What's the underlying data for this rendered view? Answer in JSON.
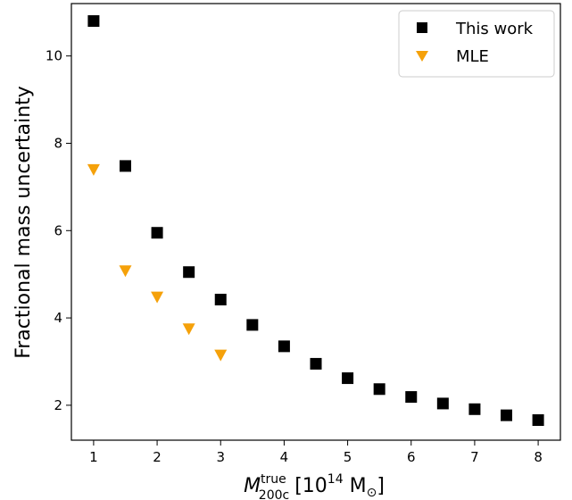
{
  "chart_data": {
    "type": "scatter",
    "xlabel": {
      "main": "M",
      "superscript": "true",
      "subscript": "200c",
      "unit_prefix": "[10",
      "unit_exponent": "14",
      "unit_suffix": " M",
      "unit_sub": "⊙",
      "unit_close": "]"
    },
    "ylabel": "Fractional mass uncertainty",
    "xlim": [
      0.65,
      8.35
    ],
    "ylim": [
      1.2,
      11.2
    ],
    "xticks": [
      1,
      2,
      3,
      4,
      5,
      6,
      7,
      8
    ],
    "yticks": [
      2,
      4,
      6,
      8,
      10
    ],
    "grid": false,
    "legend_position": "top-right",
    "series": [
      {
        "name": "This work",
        "marker": "square",
        "color": "#000000",
        "x": [
          1,
          1.5,
          2,
          2.5,
          3,
          3.5,
          4,
          4.5,
          5,
          5.5,
          6,
          6.5,
          7,
          7.5,
          8
        ],
        "y": [
          10.8,
          7.48,
          5.95,
          5.05,
          4.42,
          3.84,
          3.35,
          2.95,
          2.62,
          2.37,
          2.19,
          2.04,
          1.91,
          1.77,
          1.66
        ]
      },
      {
        "name": "MLE",
        "marker": "triangle-down",
        "color": "#f5a10a",
        "x": [
          1,
          1.5,
          2,
          2.5,
          3
        ],
        "y": [
          7.4,
          5.08,
          4.48,
          3.75,
          3.15
        ]
      }
    ]
  }
}
